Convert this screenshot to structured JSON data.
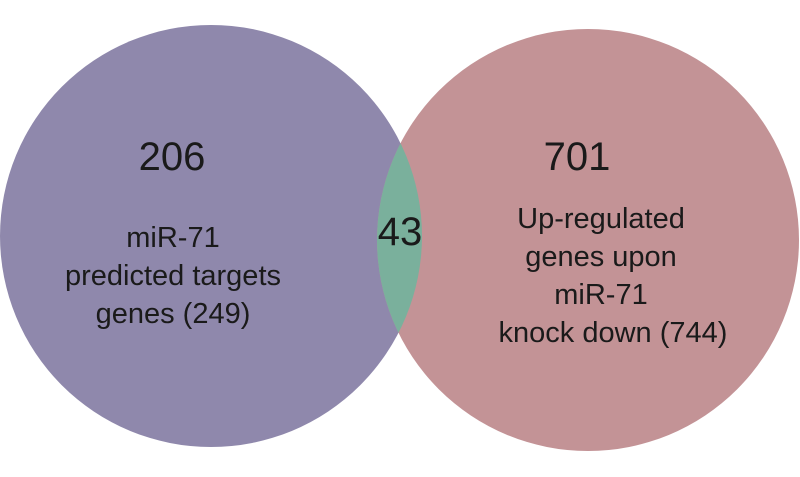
{
  "venn": {
    "colors": {
      "left": "#8f88ac",
      "right": "#c39396",
      "overlap": "#7ab09c"
    },
    "left": {
      "count": "206",
      "label_lines": [
        "miR-71",
        "predicted targets",
        "genes (249)"
      ]
    },
    "right": {
      "count": "701",
      "label_lines": [
        "Up-regulated",
        "genes upon",
        "miR-71",
        "knock down (744)"
      ]
    },
    "overlap": {
      "count": "43"
    }
  }
}
